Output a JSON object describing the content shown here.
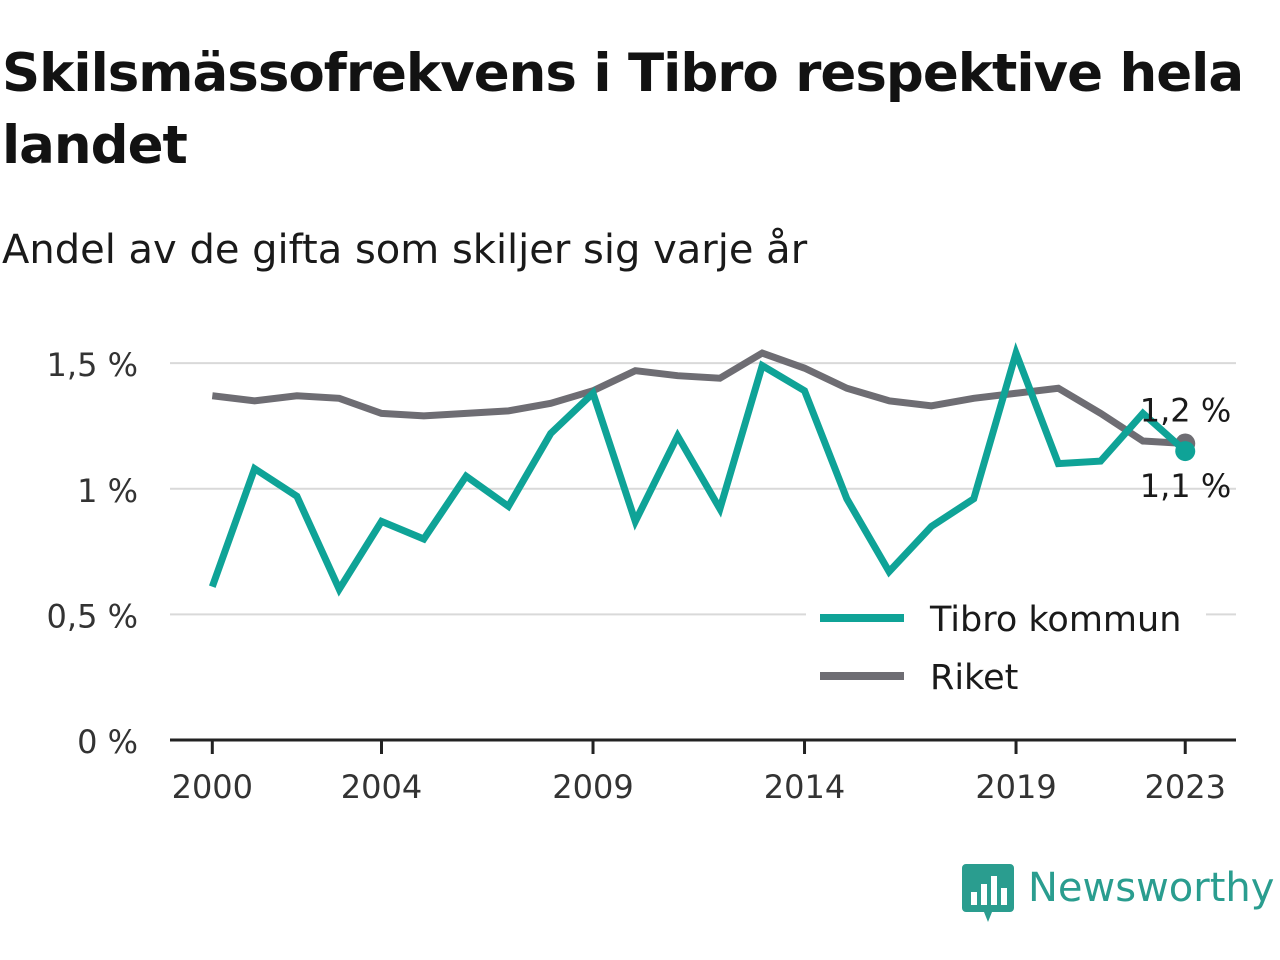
{
  "title": "Skilsmässofrekvens i Tibro respektive hela landet",
  "subtitle": "Andel av de gifta som skiljer sig varje år",
  "brand": "Newsworthy",
  "colors": {
    "tibro": "#0fa397",
    "riket": "#6e6d73",
    "grid": "#d9d9d9",
    "axis": "#222222",
    "brand": "#2a9d8f"
  },
  "chart_data": {
    "type": "line",
    "x": [
      2000,
      2001,
      2002,
      2003,
      2004,
      2005,
      2006,
      2007,
      2008,
      2009,
      2010,
      2011,
      2012,
      2013,
      2014,
      2015,
      2016,
      2017,
      2018,
      2019,
      2020,
      2021,
      2022,
      2023
    ],
    "series": [
      {
        "name": "Tibro kommun",
        "color": "#0fa397",
        "values": [
          0.61,
          1.08,
          0.97,
          0.6,
          0.87,
          0.8,
          1.05,
          0.93,
          1.22,
          1.38,
          0.87,
          1.21,
          0.92,
          1.49,
          1.39,
          0.96,
          0.67,
          0.85,
          0.96,
          1.54,
          1.1,
          1.11,
          1.3,
          1.15
        ]
      },
      {
        "name": "Riket",
        "color": "#6e6d73",
        "values": [
          1.37,
          1.35,
          1.37,
          1.36,
          1.3,
          1.29,
          1.3,
          1.31,
          1.34,
          1.39,
          1.47,
          1.45,
          1.44,
          1.54,
          1.48,
          1.4,
          1.35,
          1.33,
          1.36,
          1.38,
          1.4,
          1.3,
          1.19,
          1.18
        ]
      }
    ],
    "y_ticks": [
      {
        "value": 0,
        "label": "0 %"
      },
      {
        "value": 0.5,
        "label": "0,5 %"
      },
      {
        "value": 1,
        "label": "1 %"
      },
      {
        "value": 1.5,
        "label": "1,5 %"
      }
    ],
    "x_ticks": [
      {
        "value": 2000,
        "label": "2000"
      },
      {
        "value": 2004,
        "label": "2004"
      },
      {
        "value": 2009,
        "label": "2009"
      },
      {
        "value": 2014,
        "label": "2014"
      },
      {
        "value": 2019,
        "label": "2019"
      },
      {
        "value": 2023,
        "label": "2023"
      }
    ],
    "end_labels": [
      {
        "series": "Riket",
        "label": "1,2 %"
      },
      {
        "series": "Tibro kommun",
        "label": "1,1 %"
      }
    ],
    "ylim": [
      0,
      1.6
    ],
    "xlim": [
      1999,
      2024.2
    ],
    "grid": true,
    "legend": "bottom-right"
  }
}
